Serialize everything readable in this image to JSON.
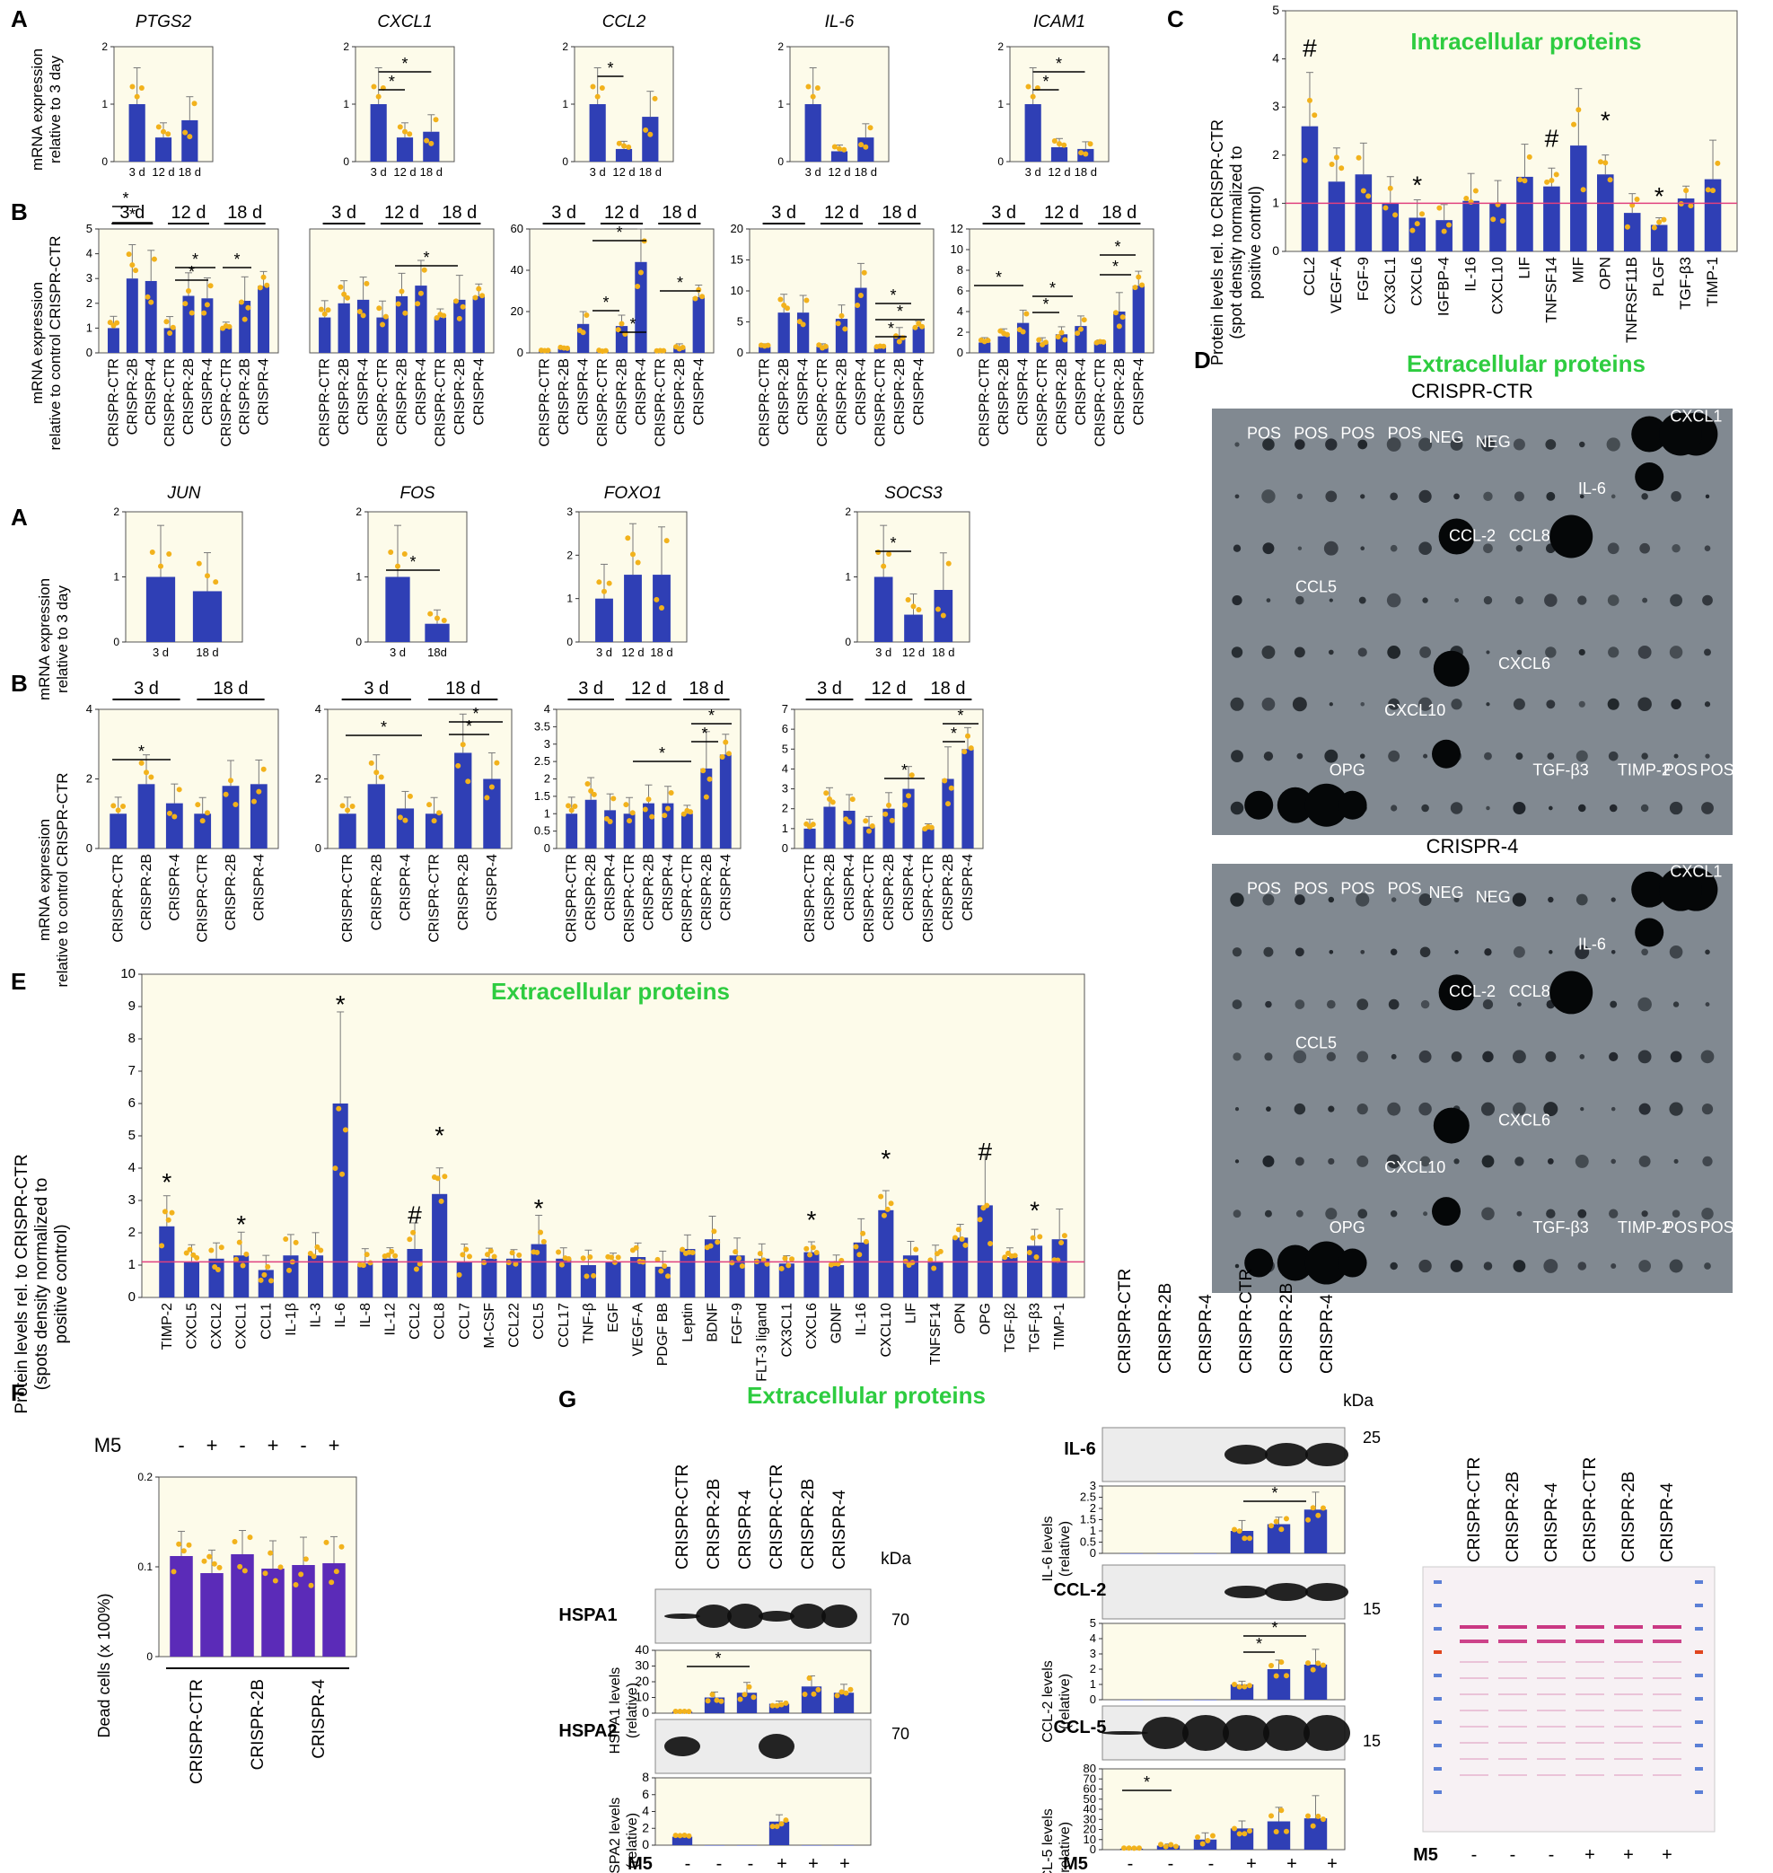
{
  "colors": {
    "bar": "#2f3fb5",
    "bar_purple": "#5b2bb8",
    "dot": "#f2b21c",
    "err": "#7a7a7a",
    "refline": "#e0407f",
    "panelbg": "#fdfbea",
    "blot": "#7d858c",
    "green": "#2ecc40"
  },
  "panel_letters": {
    "A": "A",
    "B": "B",
    "C": "C",
    "D": "D",
    "E": "E",
    "F": "F",
    "G": "G"
  },
  "ylabels": {
    "rel3": "mRNA expression|relative to 3 day",
    "relctr": "mRNA expression|relative to control CRISPR-CTR",
    "protC": "Protein levels rel. to CRISPR-CTR|(spot density normalized to|positive control)",
    "protE": "Protein levels rel. to CRISPR-CTR|(spots density normalized to|positive control)",
    "dead": "Dead cells (x 100%)",
    "hspa1": "HSPA1 levels|(relative)",
    "hspa2": "HSPA2 levels|(relative)",
    "il6": "IL-6 levels|(relative)",
    "ccl2": "CCL-2 levels|(relative)",
    "ccl5": "CCL-5 levels|(relative)"
  },
  "samples3": [
    "CRISPR-CTR",
    "CRISPR-2B",
    "CRISPR-4"
  ],
  "timepoints": {
    "d3": "3 d",
    "d12": "12 d",
    "d18": "18 d",
    "d18b": "18d",
    "d18h": "18 d"
  },
  "titles": {
    "intracellular": "Intracellular proteins",
    "extracellular": "Extracellular proteins",
    "crispr_ctr": "CRISPR-CTR",
    "crispr_4": "CRISPR-4"
  },
  "signs": {
    "minus": "-",
    "plus": "+",
    "m5": "M5",
    "star": "*",
    "hash": "#",
    "kda": "kDa"
  },
  "blot_labels": {
    "hspa1": "HSPA1",
    "hspa2": "HSPA2",
    "il6": "IL-6",
    "ccl2": "CCL-2",
    "ccl5": "CCL-5",
    "m70": "70",
    "m25": "25",
    "m15": "15"
  },
  "array_labels": [
    "POS",
    "POS",
    "POS",
    "POS",
    "NEG",
    "NEG",
    "CXCL1",
    "IL-6",
    "CCL-2",
    "CCL8",
    "CCL5",
    "CXCL6",
    "CXCL10",
    "OPG",
    "TGF-β3",
    "TIMP-2",
    "POS",
    "POS"
  ],
  "chart_data": [
    {
      "id": "A1",
      "type": "bar",
      "title": "PTGS2",
      "categories": [
        "3 d",
        "12 d",
        "18 d"
      ],
      "values": [
        1.0,
        0.42,
        0.72
      ],
      "ylim": [
        0,
        2
      ],
      "yticks": [
        0,
        1,
        2
      ]
    },
    {
      "id": "A2",
      "type": "bar",
      "title": "CXCL1",
      "categories": [
        "3 d",
        "12 d",
        "18 d"
      ],
      "values": [
        1.0,
        0.42,
        0.52
      ],
      "ylim": [
        0,
        2
      ],
      "yticks": [
        0,
        1,
        2
      ],
      "significance": [
        "3 d vs 12 d *",
        "3 d vs 18 d *"
      ]
    },
    {
      "id": "A3",
      "type": "bar",
      "title": "CCL2",
      "categories": [
        "3 d",
        "12 d",
        "18 d"
      ],
      "values": [
        1.0,
        0.22,
        0.78
      ],
      "ylim": [
        0,
        2
      ],
      "yticks": [
        0,
        1,
        2
      ],
      "significance": [
        "3 d vs 12 d *"
      ]
    },
    {
      "id": "A4",
      "type": "bar",
      "title": "IL-6",
      "categories": [
        "3 d",
        "12 d",
        "18 d"
      ],
      "values": [
        1.0,
        0.18,
        0.42
      ],
      "ylim": [
        0,
        2
      ],
      "yticks": [
        0,
        1,
        2
      ]
    },
    {
      "id": "A5",
      "type": "bar",
      "title": "ICAM1",
      "categories": [
        "3 d",
        "12 d",
        "18 d"
      ],
      "values": [
        1.0,
        0.25,
        0.22
      ],
      "ylim": [
        0,
        2
      ],
      "yticks": [
        0,
        1,
        2
      ],
      "significance": [
        "3 d vs 12 d *",
        "3 d vs 18 d *"
      ]
    },
    {
      "id": "B1",
      "type": "bar",
      "groups": [
        "3 d",
        "12 d",
        "18 d"
      ],
      "categories": [
        "CRISPR-CTR",
        "CRISPR-2B",
        "CRISPR-4",
        "CRISPR-CTR",
        "CRISPR-2B",
        "CRISPR-4",
        "CRISPR-CTR",
        "CRISPR-2B",
        "CRISPR-4"
      ],
      "values": [
        1.0,
        3.0,
        2.9,
        1.0,
        2.3,
        2.2,
        1.0,
        2.1,
        2.7
      ],
      "ylim": [
        0,
        5
      ],
      "yticks": [
        0,
        1,
        2,
        3,
        4,
        5
      ]
    },
    {
      "id": "B2",
      "type": "bar",
      "groups": [
        "3 d",
        "12 d",
        "18 d"
      ],
      "categories": [
        "CRISPR-CTR",
        "CRISPR-2B",
        "CRISPR-4",
        "CRISPR-CTR",
        "CRISPR-2B",
        "CRISPR-4",
        "CRISPR-CTR",
        "CRISPR-2B",
        "CRISPR-4"
      ],
      "values": [
        1.0,
        1.4,
        1.5,
        1.0,
        1.6,
        1.9,
        1.0,
        1.5,
        1.6
      ],
      "ylim": [
        0,
        3.5
      ]
    },
    {
      "id": "B3",
      "type": "bar",
      "groups": [
        "3 d",
        "12 d",
        "18 d"
      ],
      "categories": [
        "CRISPR-CTR",
        "CRISPR-2B",
        "CRISPR-4",
        "CRISPR-CTR",
        "CRISPR-2B",
        "CRISPR-4",
        "CRISPR-CTR",
        "CRISPR-2B",
        "CRISPR-4"
      ],
      "values": [
        1,
        2,
        14,
        1,
        13,
        44,
        1,
        3,
        27
      ],
      "ylim": [
        0,
        60
      ],
      "yticks": [
        0,
        20,
        40,
        60
      ]
    },
    {
      "id": "B4",
      "type": "bar",
      "groups": [
        "3 d",
        "12 d",
        "18 d"
      ],
      "categories": [
        "CRISPR-CTR",
        "CRISPR-2B",
        "CRISPR-4",
        "CRISPR-CTR",
        "CRISPR-2B",
        "CRISPR-4",
        "CRISPR-CTR",
        "CRISPR-2B",
        "CRISPR-4"
      ],
      "values": [
        1,
        6.5,
        6.5,
        1,
        5.5,
        10.5,
        1,
        2.8,
        4.2
      ],
      "ylim": [
        0,
        20
      ],
      "yticks": [
        0,
        5,
        10,
        15,
        20
      ]
    },
    {
      "id": "B5",
      "type": "bar",
      "groups": [
        "3 d",
        "12 d",
        "18 d"
      ],
      "categories": [
        "CRISPR-CTR",
        "CRISPR-2B",
        "CRISPR-4",
        "CRISPR-CTR",
        "CRISPR-2B",
        "CRISPR-4",
        "CRISPR-CTR",
        "CRISPR-2B",
        "CRISPR-4"
      ],
      "values": [
        1,
        1.6,
        2.9,
        1,
        1.8,
        2.6,
        1,
        4,
        6.5
      ],
      "ylim": [
        0,
        12
      ],
      "yticks": [
        0,
        2,
        4,
        6,
        8,
        10,
        12
      ]
    },
    {
      "id": "A6",
      "type": "bar",
      "title": "JUN",
      "categories": [
        "3 d",
        "18 d"
      ],
      "values": [
        1.0,
        0.78
      ],
      "ylim": [
        0,
        2
      ],
      "yticks": [
        0,
        1,
        2
      ]
    },
    {
      "id": "A7",
      "type": "bar",
      "title": "FOS",
      "categories": [
        "3 d",
        "18d"
      ],
      "values": [
        1.0,
        0.28
      ],
      "ylim": [
        0,
        2
      ],
      "yticks": [
        0,
        1,
        2
      ],
      "significance": [
        "3 d vs 18d *"
      ]
    },
    {
      "id": "A8",
      "type": "bar",
      "title": "FOXO1",
      "categories": [
        "3 d",
        "12 d",
        "18 d"
      ],
      "values": [
        1.0,
        1.55,
        1.55
      ],
      "ylim": [
        0,
        3
      ],
      "yticks": [
        0,
        1,
        2,
        3
      ]
    },
    {
      "id": "A9",
      "type": "bar",
      "title": "SOCS3",
      "categories": [
        "3 d",
        "12 d",
        "18 d"
      ],
      "values": [
        1.0,
        0.42,
        0.8
      ],
      "ylim": [
        0,
        2
      ],
      "yticks": [
        0,
        1,
        2
      ],
      "significance": [
        "3 d vs 12 d *"
      ]
    },
    {
      "id": "B6",
      "type": "bar",
      "groups": [
        "3 d",
        "18 d"
      ],
      "categories": [
        "CRISPR-CTR",
        "CRISPR-2B",
        "CRISPR-4",
        "CRISPR-CTR",
        "CRISPR-2B",
        "CRISPR-4"
      ],
      "values": [
        1.0,
        1.85,
        1.3,
        1.0,
        1.8,
        1.85
      ],
      "ylim": [
        0,
        4
      ],
      "yticks": [
        0,
        2,
        4
      ]
    },
    {
      "id": "B7",
      "type": "bar",
      "groups": [
        "3 d",
        "18 d"
      ],
      "categories": [
        "CRISPR-CTR",
        "CRISPR-2B",
        "CRISPR-4",
        "CRISPR-CTR",
        "CRISPR-2B",
        "CRISPR-4"
      ],
      "values": [
        1.0,
        1.85,
        1.15,
        1.0,
        2.75,
        2.0
      ],
      "ylim": [
        0,
        4
      ],
      "yticks": [
        0,
        2,
        4
      ]
    },
    {
      "id": "B8",
      "type": "bar",
      "groups": [
        "3 d",
        "12 d",
        "18 d"
      ],
      "categories": [
        "CRISPR-CTR",
        "CRISPR-2B",
        "CRISPR-4",
        "CRISPR-CTR",
        "CRISPR-2B",
        "CRISPR-4",
        "CRISPR-CTR",
        "CRISPR-2B",
        "CRISPR-4"
      ],
      "values": [
        1.0,
        1.4,
        1.1,
        1.0,
        1.3,
        1.3,
        1.0,
        2.3,
        2.7
      ],
      "ylim": [
        0,
        4
      ],
      "yticks": [
        0,
        0.5,
        1,
        1.5,
        2,
        2.5,
        3,
        3.5,
        4
      ]
    },
    {
      "id": "B9",
      "type": "bar",
      "groups": [
        "3 d",
        "12 d",
        "18 d"
      ],
      "categories": [
        "CRISPR-CTR",
        "CRISPR-2B",
        "CRISPR-4",
        "CRISPR-CTR",
        "CRISPR-2B",
        "CRISPR-4",
        "CRISPR-CTR",
        "CRISPR-2B",
        "CRISPR-4"
      ],
      "values": [
        1.0,
        2.1,
        1.9,
        1.1,
        2.0,
        3.0,
        1.0,
        3.5,
        5.0
      ],
      "ylim": [
        0,
        7
      ],
      "yticks": [
        0,
        1,
        2,
        3,
        4,
        5,
        6,
        7
      ]
    },
    {
      "id": "C",
      "type": "bar",
      "title": "Intracellular proteins",
      "categories": [
        "CCL2",
        "VEGF-A",
        "FGF-9",
        "CX3CL1",
        "CXCL6",
        "IGFBP-4",
        "IL-16",
        "CXCL10",
        "LIF",
        "TNFSF14",
        "MIF",
        "OPN",
        "TNFRSF11B",
        "PLGF",
        "TGF-β3",
        "TIMP-1"
      ],
      "values": [
        2.6,
        1.45,
        1.6,
        1.0,
        0.7,
        0.65,
        1.05,
        1.0,
        1.55,
        1.35,
        2.2,
        1.6,
        0.8,
        0.55,
        1.1,
        1.5
      ],
      "ylim": [
        0,
        5
      ],
      "yticks": [
        0,
        1,
        2,
        3,
        4,
        5
      ],
      "reference_line": 1,
      "marks": [
        "CCL2 #",
        "CXCL6 *",
        "TNFSF14 #",
        "OPN *",
        "PLGF *"
      ]
    },
    {
      "id": "E",
      "type": "bar",
      "title": "Extracellular proteins",
      "categories": [
        "TIMP-2",
        "CXCL5",
        "CXCL2",
        "CXCL1",
        "CCL1",
        "IL-1β",
        "IL-3",
        "IL-6",
        "IL-8",
        "IL-12",
        "CCL2",
        "CCL8",
        "CCL7",
        "M-CSF",
        "CCL22",
        "CCL5",
        "CCL17",
        "TNF-β",
        "EGF",
        "VEGF-A",
        "PDGF BB",
        "Leptin",
        "BDNF",
        "FGF-9",
        "FLT-3 ligand",
        "CX3CL1",
        "CXCL6",
        "GDNF",
        "IL-16",
        "CXCL10",
        "LIF",
        "TNFSF14",
        "OPN",
        "OPG",
        "TGF-β2",
        "TGF-β3",
        "TIMP-1"
      ],
      "values": [
        2.2,
        1.1,
        1.2,
        1.3,
        0.85,
        1.3,
        1.3,
        6.0,
        1.05,
        1.2,
        1.5,
        3.2,
        1.1,
        1.2,
        1.2,
        1.65,
        1.2,
        1.0,
        1.1,
        1.25,
        0.95,
        1.5,
        1.8,
        1.3,
        1.2,
        1.05,
        1.4,
        1.0,
        1.7,
        2.7,
        1.3,
        1.1,
        1.85,
        2.85,
        1.25,
        1.6,
        1.8
      ],
      "ylim": [
        0,
        10
      ],
      "yticks": [
        0,
        1,
        2,
        3,
        4,
        5,
        6,
        7,
        8,
        9,
        10
      ],
      "reference_line": 1.1,
      "marks": [
        "TIMP-2 *",
        "CXCL1 *",
        "IL-6 *",
        "CCL2 #",
        "CCL8 *",
        "CCL5 *",
        "CXCL6 *",
        "CXCL10 *",
        "OPG #",
        "TGF-β3 *"
      ]
    },
    {
      "id": "F",
      "type": "bar",
      "xlabel": "M5",
      "categories": [
        "CRISPR-CTR -",
        "CRISPR-CTR +",
        "CRISPR-2B -",
        "CRISPR-2B +",
        "CRISPR-4 -",
        "CRISPR-4 +"
      ],
      "values": [
        0.112,
        0.093,
        0.114,
        0.098,
        0.102,
        0.104
      ],
      "ylim": [
        0,
        0.2
      ],
      "yticks": [
        0,
        0.1,
        0.2
      ],
      "ylabel": "Dead cells (x 100%)"
    },
    {
      "id": "G-HSPA1",
      "type": "bar",
      "categories": [
        "CRISPR-CTR -",
        "CRISPR-2B -",
        "CRISPR-4 -",
        "CRISPR-CTR +",
        "CRISPR-2B +",
        "CRISPR-4 +"
      ],
      "values": [
        1,
        10,
        13,
        6,
        17,
        13
      ],
      "ylim": [
        0,
        40
      ],
      "yticks": [
        0,
        10,
        20,
        30,
        40
      ]
    },
    {
      "id": "G-HSPA2",
      "type": "bar",
      "categories": [
        "CRISPR-CTR -",
        "CRISPR-2B -",
        "CRISPR-4 -",
        "CRISPR-CTR +",
        "CRISPR-2B +",
        "CRISPR-4 +"
      ],
      "values": [
        1.0,
        0.0,
        0.0,
        2.8,
        0.0,
        0.0
      ],
      "ylim": [
        0,
        8
      ],
      "yticks": [
        0,
        2,
        4,
        6,
        8
      ]
    },
    {
      "id": "G-IL6",
      "type": "bar",
      "categories": [
        "CRISPR-CTR -",
        "CRISPR-2B -",
        "CRISPR-4 -",
        "CRISPR-CTR +",
        "CRISPR-2B +",
        "CRISPR-4 +"
      ],
      "values": [
        0,
        0,
        0,
        1.0,
        1.3,
        1.95
      ],
      "ylim": [
        0,
        3
      ],
      "yticks": [
        0,
        0.5,
        1,
        1.5,
        2,
        2.5,
        3
      ]
    },
    {
      "id": "G-CCL2",
      "type": "bar",
      "categories": [
        "CRISPR-CTR -",
        "CRISPR-2B -",
        "CRISPR-4 -",
        "CRISPR-CTR +",
        "CRISPR-2B +",
        "CRISPR-4 +"
      ],
      "values": [
        0,
        0,
        0,
        1.0,
        2.0,
        2.3
      ],
      "ylim": [
        0,
        5
      ],
      "yticks": [
        0,
        1,
        2,
        3,
        4,
        5
      ]
    },
    {
      "id": "G-CCL5",
      "type": "bar",
      "categories": [
        "CRISPR-CTR -",
        "CRISPR-2B -",
        "CRISPR-4 -",
        "CRISPR-CTR +",
        "CRISPR-2B +",
        "CRISPR-4 +"
      ],
      "values": [
        1,
        4,
        10,
        21,
        28,
        31
      ],
      "ylim": [
        0,
        80
      ],
      "yticks": [
        0,
        10,
        20,
        30,
        40,
        50,
        60,
        70,
        80
      ]
    }
  ]
}
